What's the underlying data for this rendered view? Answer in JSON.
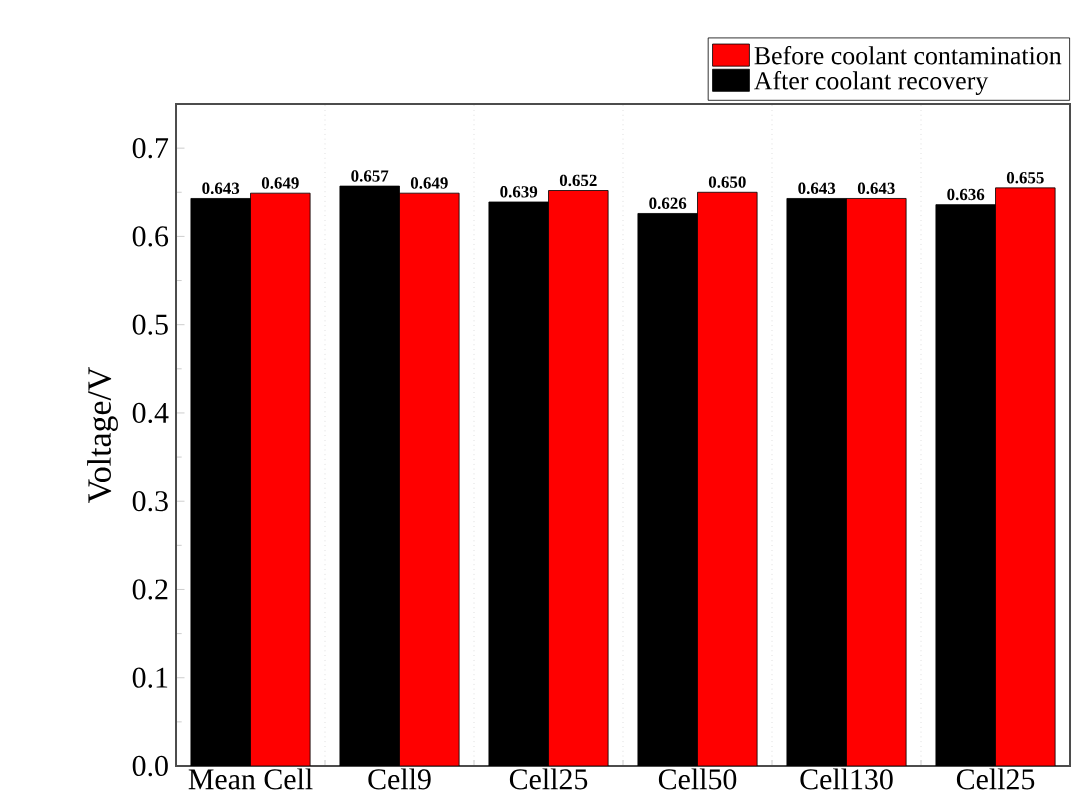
{
  "chart_data": {
    "type": "bar",
    "ylabel": "Voltage/V",
    "categories": [
      "Mean Cell",
      "Cell9",
      "Cell25",
      "Cell50",
      "Cell130",
      "Cell25"
    ],
    "series": [
      {
        "name": "After coolant recovery",
        "color": "#000000",
        "values": [
          0.643,
          0.657,
          0.639,
          0.626,
          0.643,
          0.636
        ],
        "value_labels": [
          "0.643",
          "0.657",
          "0.639",
          "0.626",
          "0.643",
          "0.636"
        ]
      },
      {
        "name": "Before coolant contamination",
        "color": "#ff0000",
        "values": [
          0.649,
          0.649,
          0.652,
          0.65,
          0.643,
          0.655
        ],
        "value_labels": [
          "0.649",
          "0.649",
          "0.652",
          "0.650",
          "0.643",
          "0.655"
        ]
      }
    ],
    "ylim": [
      0,
      0.75
    ],
    "yticks": [
      {
        "value": 0,
        "label": "0.0"
      },
      0.1,
      0.2,
      0.3,
      0.4,
      0.5,
      0.6,
      0.7
    ],
    "grid": "x",
    "legend": "top right"
  }
}
